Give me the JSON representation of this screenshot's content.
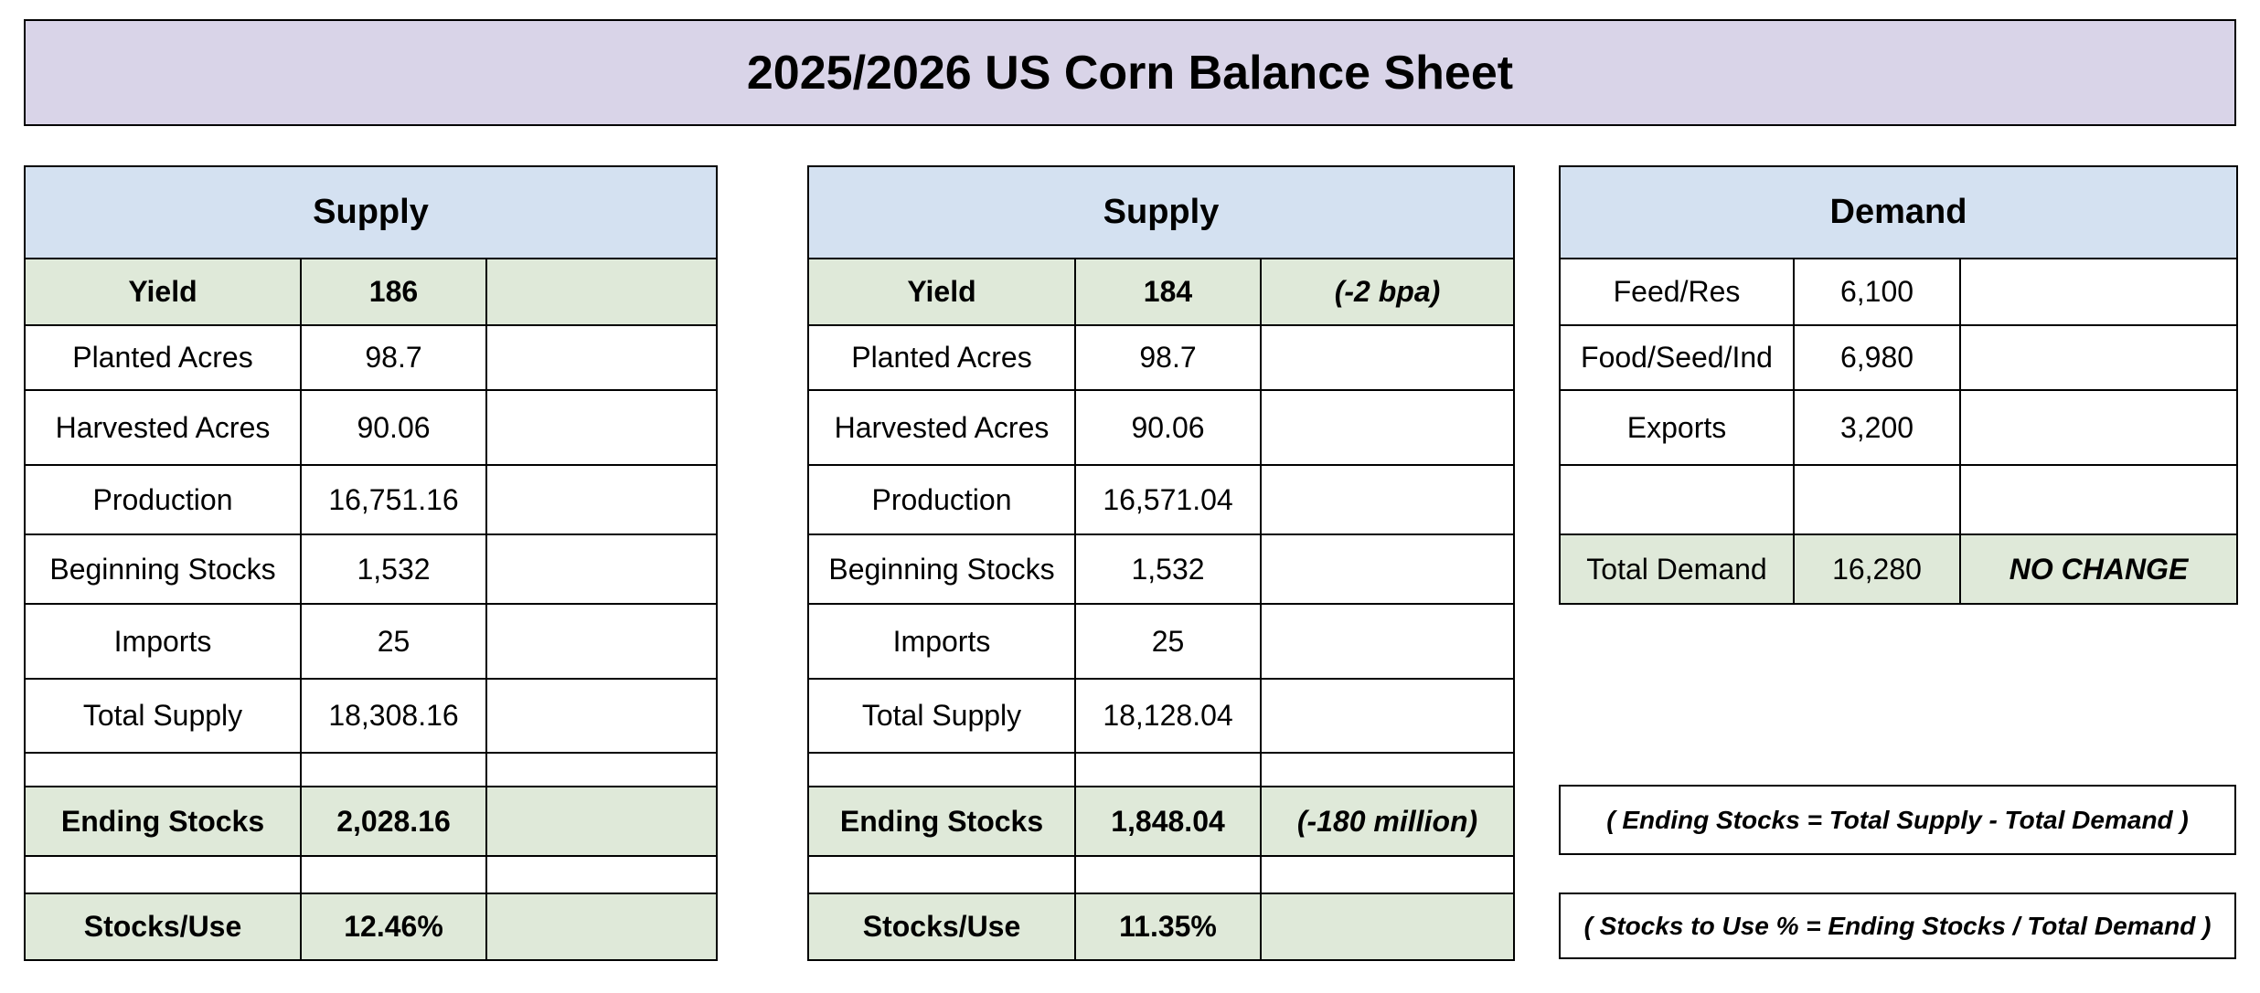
{
  "title": "2025/2026 US Corn Balance Sheet",
  "supply_a": {
    "header": "Supply",
    "rows": [
      {
        "label": "Yield",
        "value": "186",
        "note": ""
      },
      {
        "label": "Planted Acres",
        "value": "98.7",
        "note": ""
      },
      {
        "label": "Harvested Acres",
        "value": "90.06",
        "note": ""
      },
      {
        "label": "Production",
        "value": "16,751.16",
        "note": ""
      },
      {
        "label": "Beginning Stocks",
        "value": "1,532",
        "note": ""
      },
      {
        "label": "Imports",
        "value": "25",
        "note": ""
      },
      {
        "label": "Total Supply",
        "value": "18,308.16",
        "note": ""
      },
      {
        "label": "",
        "value": "",
        "note": ""
      },
      {
        "label": "Ending Stocks",
        "value": "2,028.16",
        "note": ""
      },
      {
        "label": "",
        "value": "",
        "note": ""
      },
      {
        "label": "Stocks/Use",
        "value": "12.46%",
        "note": ""
      }
    ]
  },
  "supply_b": {
    "header": "Supply",
    "rows": [
      {
        "label": "Yield",
        "value": "184",
        "note": "(-2 bpa)"
      },
      {
        "label": "Planted Acres",
        "value": "98.7",
        "note": ""
      },
      {
        "label": "Harvested Acres",
        "value": "90.06",
        "note": ""
      },
      {
        "label": "Production",
        "value": "16,571.04",
        "note": ""
      },
      {
        "label": "Beginning Stocks",
        "value": "1,532",
        "note": ""
      },
      {
        "label": "Imports",
        "value": "25",
        "note": ""
      },
      {
        "label": "Total Supply",
        "value": "18,128.04",
        "note": ""
      },
      {
        "label": "",
        "value": "",
        "note": ""
      },
      {
        "label": "Ending Stocks",
        "value": "1,848.04",
        "note": "(-180 million)"
      },
      {
        "label": "",
        "value": "",
        "note": ""
      },
      {
        "label": "Stocks/Use",
        "value": "11.35%",
        "note": ""
      }
    ]
  },
  "demand": {
    "header": "Demand",
    "rows": [
      {
        "label": "Feed/Res",
        "value": "6,100",
        "note": ""
      },
      {
        "label": "Food/Seed/Ind",
        "value": "6,980",
        "note": ""
      },
      {
        "label": "Exports",
        "value": "3,200",
        "note": ""
      },
      {
        "label": "",
        "value": "",
        "note": ""
      },
      {
        "label": "Total Demand",
        "value": "16,280",
        "note": "NO CHANGE"
      }
    ]
  },
  "formulas": {
    "ending_stocks": "( Ending Stocks = Total Supply - Total Demand )",
    "stocks_to_use": "( Stocks to Use % = Ending Stocks / Total Demand )"
  }
}
